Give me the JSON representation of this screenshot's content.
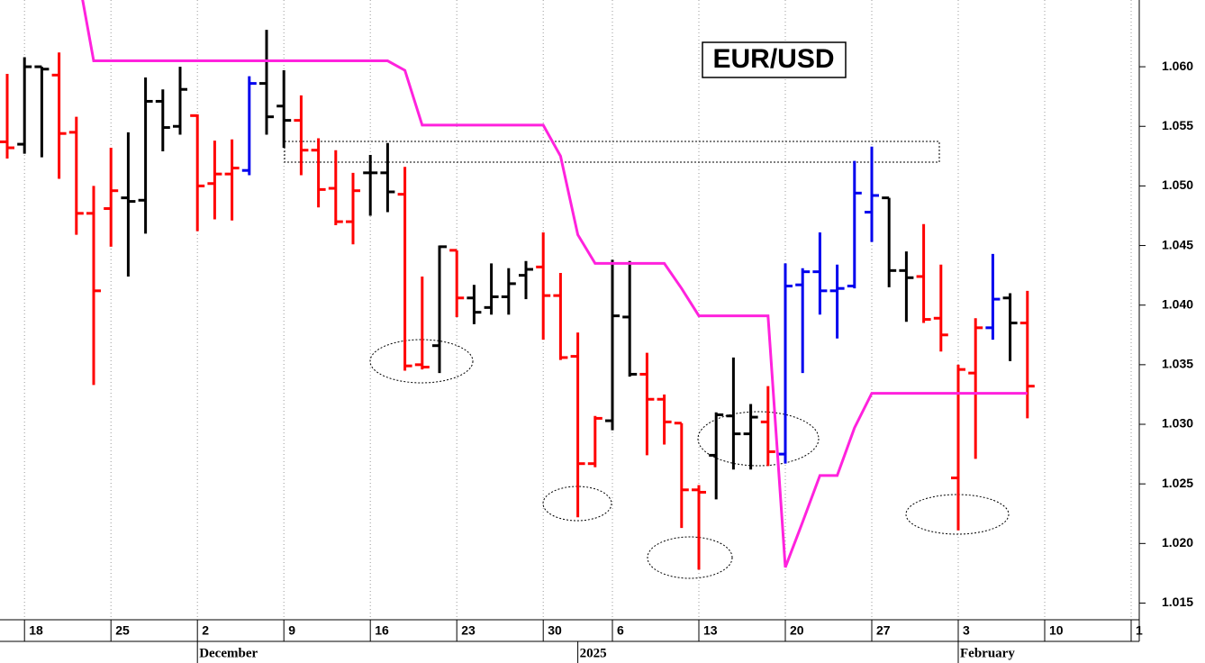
{
  "chart_data": {
    "type": "ohlc",
    "title": "EUR/USD",
    "categories": [
      null,
      "18",
      null,
      null,
      null,
      null,
      "25",
      null,
      null,
      null,
      null,
      "2",
      null,
      null,
      null,
      null,
      "9",
      null,
      null,
      null,
      null,
      "16",
      null,
      null,
      null,
      null,
      "23",
      null,
      null,
      null,
      null,
      "30",
      null,
      null,
      null,
      "6",
      null,
      null,
      null,
      null,
      "13",
      null,
      null,
      null,
      null,
      "20",
      null,
      null,
      null,
      null,
      "27",
      null,
      null,
      null,
      null,
      "3",
      null,
      null,
      null,
      null,
      "10",
      null,
      null,
      null,
      null,
      "1"
    ],
    "month_categories": [
      null,
      null,
      null,
      null,
      null,
      null,
      null,
      null,
      null,
      null,
      null,
      "December",
      null,
      null,
      null,
      null,
      null,
      null,
      null,
      null,
      null,
      null,
      null,
      null,
      null,
      null,
      null,
      null,
      null,
      null,
      null,
      null,
      null,
      "2025",
      null,
      null,
      null,
      null,
      null,
      null,
      null,
      null,
      null,
      null,
      null,
      null,
      null,
      null,
      null,
      null,
      null,
      null,
      null,
      null,
      null,
      "February",
      null,
      null,
      null,
      null,
      null,
      null,
      null,
      null,
      null,
      null
    ],
    "open": [
      1.0537,
      1.0535,
      1.06,
      1.0593,
      1.0545,
      1.0477,
      1.0481,
      1.049,
      1.0488,
      1.0571,
      1.055,
      1.0559,
      1.0502,
      1.051,
      1.0513,
      1.0586,
      1.0567,
      1.0555,
      1.053,
      1.0498,
      1.047,
      1.0511,
      1.0511,
      1.0493,
      1.035,
      1.0366,
      1.0446,
      1.0406,
      1.0398,
      1.0407,
      1.0425,
      1.0432,
      1.0408,
      1.0357,
      1.0267,
      1.0303,
      1.039,
      1.0342,
      1.0321,
      1.0301,
      1.0245,
      1.0274,
      1.0307,
      1.0292,
      1.0302,
      1.0275,
      1.0417,
      1.0428,
      1.0412,
      1.0416,
      1.0478,
      1.049,
      1.0429,
      1.0424,
      1.0389,
      1.0255,
      1.0343,
      1.0381,
      1.0406,
      1.0385,
      null,
      null,
      null,
      null,
      null,
      null
    ],
    "high": [
      1.0594,
      1.0608,
      1.06,
      1.0612,
      1.0558,
      1.05,
      1.0532,
      1.0545,
      1.0591,
      1.0581,
      1.06,
      1.056,
      1.0538,
      1.0539,
      1.0592,
      1.0631,
      1.0597,
      1.0576,
      1.054,
      1.053,
      1.0511,
      1.0526,
      1.0536,
      1.0516,
      1.0424,
      1.045,
      1.0446,
      1.0417,
      1.0435,
      1.0431,
      1.0437,
      1.0461,
      1.0427,
      1.0377,
      1.0307,
      1.0438,
      1.0437,
      1.036,
      1.0325,
      1.0301,
      1.0249,
      1.031,
      1.0356,
      1.0317,
      1.0332,
      1.0435,
      1.0431,
      1.0461,
      1.0434,
      1.0521,
      1.0533,
      1.049,
      1.0445,
      1.0468,
      1.0434,
      1.035,
      1.0389,
      1.0443,
      1.041,
      1.0412,
      null,
      null,
      null,
      null,
      null,
      null
    ],
    "low": [
      1.0523,
      1.0527,
      1.0524,
      1.0506,
      1.0459,
      1.0333,
      1.0449,
      1.0424,
      1.046,
      1.0529,
      1.0543,
      1.0462,
      1.0472,
      1.0471,
      1.0509,
      1.0543,
      1.0532,
      1.0509,
      1.0482,
      1.0467,
      1.0451,
      1.0475,
      1.0478,
      1.0345,
      1.0346,
      1.0343,
      1.039,
      1.0384,
      1.0392,
      1.0392,
      1.0405,
      1.0371,
      1.0354,
      1.0222,
      1.0264,
      1.0295,
      1.034,
      1.0274,
      1.0283,
      1.0213,
      1.0178,
      1.0237,
      1.0262,
      1.0262,
      1.0265,
      1.0267,
      1.0343,
      1.0392,
      1.0372,
      1.0414,
      1.0453,
      1.0415,
      1.0386,
      1.0385,
      1.0361,
      1.0211,
      1.0271,
      1.0371,
      1.0353,
      1.0305,
      null,
      null,
      null,
      null,
      null,
      null
    ],
    "close": [
      1.0532,
      1.06,
      1.0598,
      1.0544,
      1.0477,
      1.0412,
      1.0496,
      1.0487,
      1.0571,
      1.0549,
      1.0581,
      1.05,
      1.051,
      1.0515,
      1.0586,
      1.0558,
      1.0555,
      1.053,
      1.0497,
      1.047,
      1.0496,
      1.0511,
      1.0495,
      1.0349,
      1.0348,
      1.0449,
      1.0406,
      1.0394,
      1.0407,
      1.0418,
      1.043,
      1.0408,
      1.0356,
      1.0267,
      1.0305,
      1.0391,
      1.0342,
      1.0321,
      1.0302,
      1.0245,
      1.0243,
      1.0308,
      1.0292,
      1.0306,
      1.0277,
      1.0416,
      1.0428,
      1.0412,
      1.0414,
      1.0494,
      1.0492,
      1.0429,
      1.0423,
      1.0388,
      1.0375,
      1.0346,
      1.0381,
      1.0405,
      1.0385,
      1.0332,
      null,
      null,
      null,
      null,
      null,
      null
    ],
    "bar_colors": [
      "#ff0000",
      "#000000",
      "#000000",
      "#ff0000",
      "#ff0000",
      "#ff0000",
      "#ff0000",
      "#000000",
      "#000000",
      "#000000",
      "#000000",
      "#ff0000",
      "#ff0000",
      "#ff0000",
      "#0000ee",
      "#000000",
      "#000000",
      "#ff0000",
      "#ff0000",
      "#ff0000",
      "#ff0000",
      "#000000",
      "#000000",
      "#ff0000",
      "#ff0000",
      "#000000",
      "#ff0000",
      "#000000",
      "#000000",
      "#000000",
      "#000000",
      "#ff0000",
      "#ff0000",
      "#ff0000",
      "#ff0000",
      "#000000",
      "#000000",
      "#ff0000",
      "#ff0000",
      "#ff0000",
      "#ff0000",
      "#000000",
      "#000000",
      "#000000",
      "#ff0000",
      "#0000ee",
      "#0000ee",
      "#0000ee",
      "#0000ee",
      "#0000ee",
      "#0000ee",
      "#000000",
      "#000000",
      "#ff0000",
      "#ff0000",
      "#ff0000",
      "#ff0000",
      "#0000ee",
      "#000000",
      "#ff0000",
      null,
      null,
      null,
      null,
      null,
      null
    ],
    "overlay": {
      "color": "#ff22dd",
      "values": [
        null,
        null,
        null,
        null,
        1.0685,
        1.0605,
        1.0605,
        1.0605,
        1.0605,
        1.0605,
        1.0605,
        1.0605,
        1.0605,
        1.0605,
        1.0605,
        1.0605,
        1.0605,
        1.0605,
        1.0605,
        1.0605,
        1.0605,
        1.0605,
        1.0605,
        1.0597,
        1.0551,
        1.0551,
        1.0551,
        1.0551,
        1.0551,
        1.0551,
        1.0551,
        1.0551,
        1.0525,
        1.0459,
        1.0435,
        1.0435,
        1.0435,
        1.0435,
        1.0435,
        1.0414,
        1.0391,
        1.0391,
        1.0391,
        1.0391,
        1.0391,
        1.018,
        1.0218,
        1.0257,
        1.0257,
        1.0297,
        1.0326,
        1.0326,
        1.0326,
        1.0326,
        1.0326,
        1.0326,
        1.0326,
        1.0326,
        1.0326,
        1.0326,
        null,
        null,
        null,
        null,
        null,
        null
      ]
    },
    "ylim": [
      1.0136,
      1.0656
    ],
    "yticks": [
      1.015,
      {
        "value": 1.02,
        "label": "1.020"
      },
      1.025,
      {
        "value": 1.03,
        "label": "1.030"
      },
      1.035,
      {
        "value": 1.04,
        "label": "1.040"
      },
      1.045,
      {
        "value": 1.05,
        "label": "1.050"
      },
      1.055,
      {
        "value": 1.06,
        "label": "1.060"
      }
    ],
    "y_axis_side": "right",
    "grid": "x"
  }
}
